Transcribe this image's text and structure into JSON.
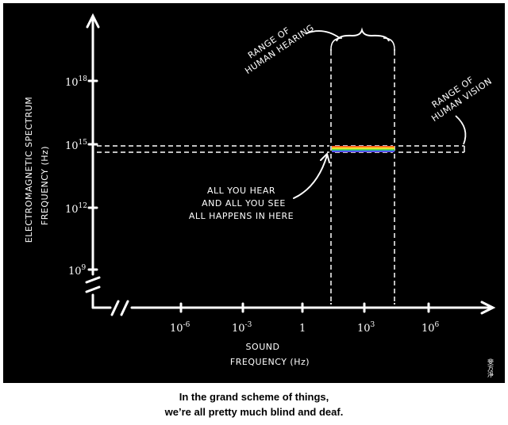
{
  "diagram": {
    "y_axis_label_line1": "ELECTROMAGNETIC SPECTRUM",
    "y_axis_label_line2": "FREQUENCY (Hz)",
    "x_axis_label_line1": "SOUND",
    "x_axis_label_line2": "FREQUENCY (Hz)",
    "y_ticks": [
      {
        "base": "10",
        "exp": "18"
      },
      {
        "base": "10",
        "exp": "15"
      },
      {
        "base": "10",
        "exp": "12"
      },
      {
        "base": "10",
        "exp": "9"
      }
    ],
    "x_ticks": [
      {
        "base": "10",
        "exp": "-6"
      },
      {
        "base": "10",
        "exp": "-3"
      },
      {
        "base": "1",
        "exp": ""
      },
      {
        "base": "10",
        "exp": "3"
      },
      {
        "base": "10",
        "exp": "6"
      }
    ],
    "hearing_label": [
      "RANGE OF",
      "HUMAN HEARING"
    ],
    "vision_label": [
      "RANGE OF",
      "HUMAN VISION"
    ],
    "annotation": [
      "ALL YOU HEAR",
      "AND ALL YOU SEE",
      "ALL HAPPENS IN HERE"
    ],
    "signature": "斐方淨",
    "colors": {
      "panel": "#000000",
      "ink": "#ffffff"
    },
    "spectrum_colors": [
      "#ff2a2a",
      "#ff9a1a",
      "#ffee33",
      "#3ddc3d",
      "#2f6dff",
      "#8a2be2"
    ]
  },
  "caption": {
    "line1": "In the grand scheme of things,",
    "line2": "we’re all pretty much blind and deaf."
  }
}
